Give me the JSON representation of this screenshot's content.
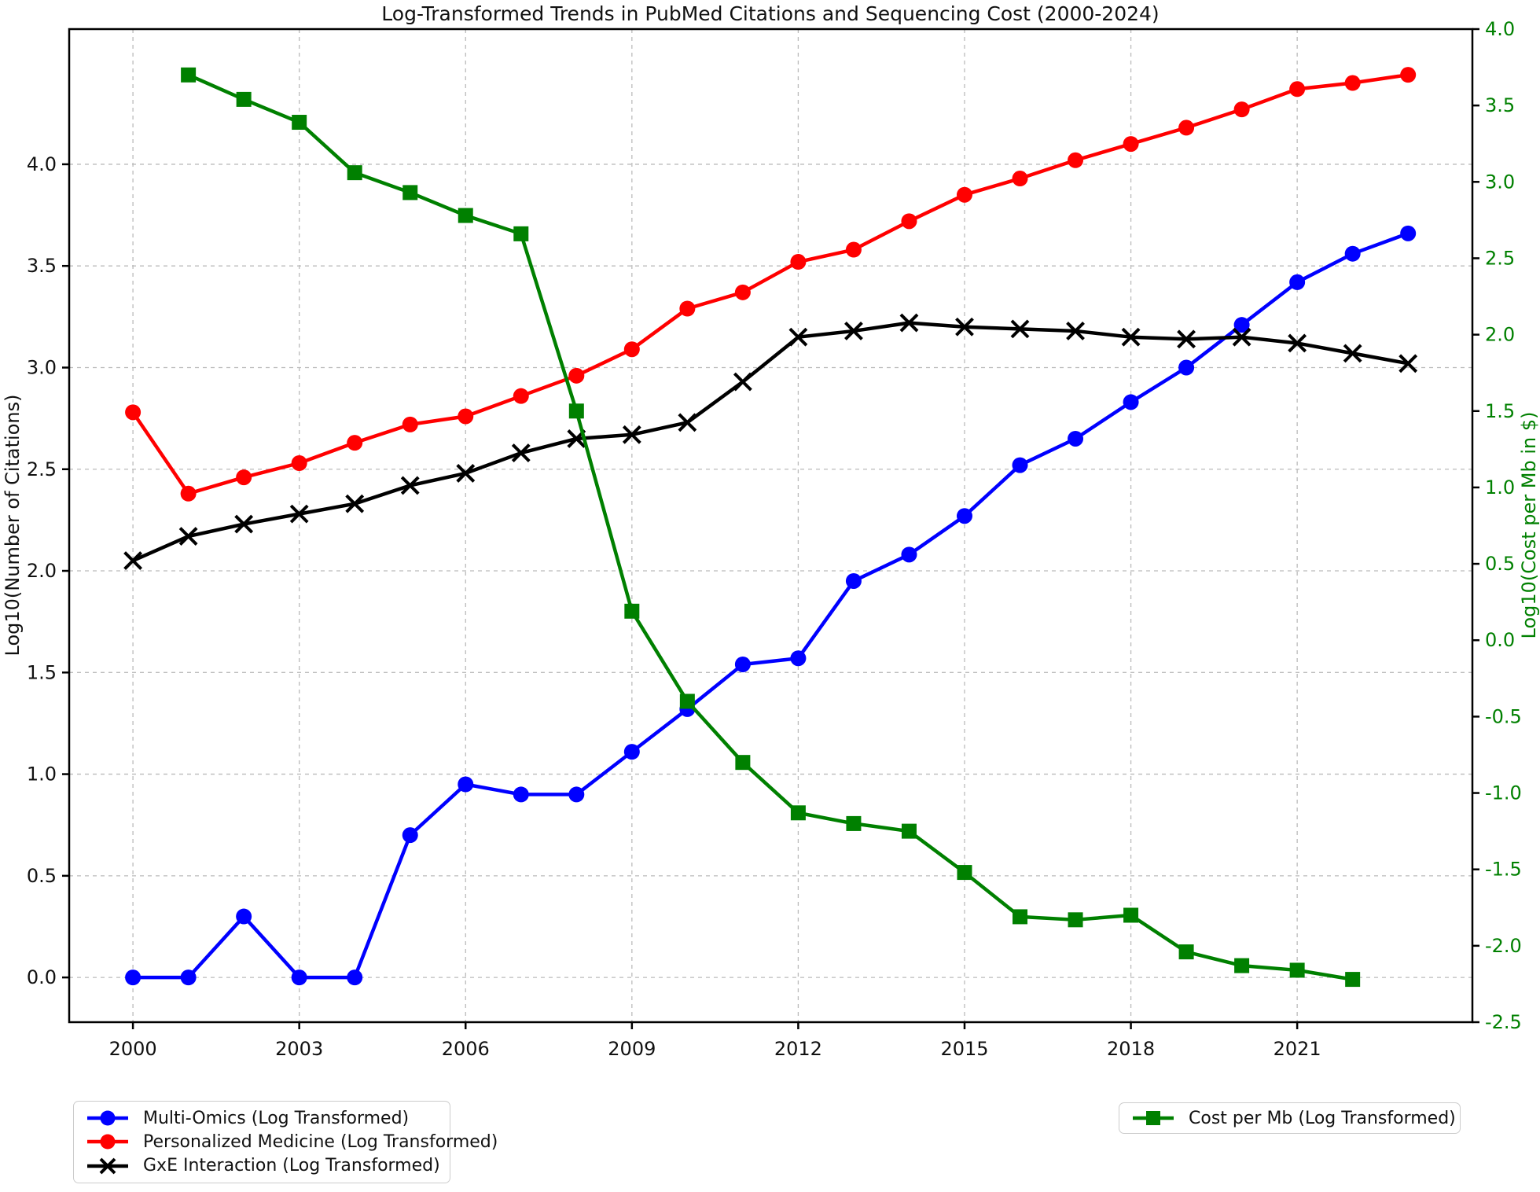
{
  "chart_data": {
    "type": "line",
    "title": "Log-Transformed Trends in PubMed Citations and Sequencing Cost (2000-2024)",
    "ylabel_left": "Log10(Number of Citations)",
    "ylabel_right": "Log10(Cost per Mb in $)",
    "xlim": [
      1998.85,
      2024.16
    ],
    "ylim_left": [
      -0.22,
      4.665
    ],
    "ylim_right": [
      -2.5,
      4.0
    ],
    "x_ticks": [
      "2000",
      "2003",
      "2006",
      "2009",
      "2012",
      "2015",
      "2018",
      "2021"
    ],
    "y_ticks_left": [
      "0.0",
      "0.5",
      "1.0",
      "1.5",
      "2.0",
      "2.5",
      "3.0",
      "3.5",
      "4.0"
    ],
    "y_ticks_right": [
      "-2.5",
      "-2.0",
      "-1.5",
      "-1.0",
      "-0.5",
      "0.0",
      "0.5",
      "1.0",
      "1.5",
      "2.0",
      "2.5",
      "3.0",
      "3.5",
      "4.0"
    ],
    "grid": "dashed",
    "grid_color": "#bbbbbb",
    "right_axis_color": "#008000",
    "series": [
      {
        "name": "Multi-Omics (Log Transformed)",
        "color": "#0000ff",
        "marker": "circle",
        "axis": "left",
        "x": [
          2000,
          2001,
          2002,
          2003,
          2004,
          2005,
          2006,
          2007,
          2008,
          2009,
          2010,
          2011,
          2012,
          2013,
          2014,
          2015,
          2016,
          2017,
          2018,
          2019,
          2020,
          2021,
          2022,
          2023
        ],
        "y": [
          0.0,
          0.0,
          0.3,
          0.0,
          0.0,
          0.7,
          0.95,
          0.9,
          0.9,
          1.11,
          1.32,
          1.54,
          1.57,
          1.95,
          2.08,
          2.27,
          2.52,
          2.65,
          2.83,
          3.0,
          3.21,
          3.42,
          3.56,
          3.66
        ]
      },
      {
        "name": "Personalized Medicine (Log Transformed)",
        "color": "#ff0000",
        "marker": "circle",
        "axis": "left",
        "x": [
          2000,
          2001,
          2002,
          2003,
          2004,
          2005,
          2006,
          2007,
          2008,
          2009,
          2010,
          2011,
          2012,
          2013,
          2014,
          2015,
          2016,
          2017,
          2018,
          2019,
          2020,
          2021,
          2022,
          2023
        ],
        "y": [
          2.78,
          2.38,
          2.46,
          2.53,
          2.63,
          2.72,
          2.76,
          2.86,
          2.96,
          3.09,
          3.29,
          3.37,
          3.52,
          3.58,
          3.72,
          3.85,
          3.93,
          4.02,
          4.1,
          4.18,
          4.27,
          4.37,
          4.4,
          4.44
        ]
      },
      {
        "name": "GxE Interaction (Log Transformed)",
        "color": "#000000",
        "marker": "x",
        "axis": "left",
        "x": [
          2000,
          2001,
          2002,
          2003,
          2004,
          2005,
          2006,
          2007,
          2008,
          2009,
          2010,
          2011,
          2012,
          2013,
          2014,
          2015,
          2016,
          2017,
          2018,
          2019,
          2020,
          2021,
          2022,
          2023
        ],
        "y": [
          2.05,
          2.17,
          2.23,
          2.28,
          2.33,
          2.42,
          2.48,
          2.58,
          2.65,
          2.67,
          2.73,
          2.93,
          3.15,
          3.18,
          3.22,
          3.2,
          3.19,
          3.18,
          3.15,
          3.14,
          3.15,
          3.12,
          3.07,
          3.02
        ]
      },
      {
        "name": "Cost per Mb (Log Transformed)",
        "color": "#008000",
        "marker": "square",
        "axis": "right",
        "x": [
          2001,
          2002,
          2003,
          2004,
          2005,
          2006,
          2007,
          2008,
          2009,
          2010,
          2011,
          2012,
          2013,
          2014,
          2015,
          2016,
          2017,
          2018,
          2019,
          2020,
          2021,
          2022
        ],
        "y": [
          3.7,
          3.54,
          3.39,
          3.06,
          2.93,
          2.78,
          2.66,
          1.5,
          0.19,
          -0.4,
          -0.8,
          -1.13,
          -1.2,
          -1.25,
          -1.52,
          -1.81,
          -1.83,
          -1.8,
          -2.04,
          -2.13,
          -2.16,
          -2.22
        ]
      }
    ]
  }
}
